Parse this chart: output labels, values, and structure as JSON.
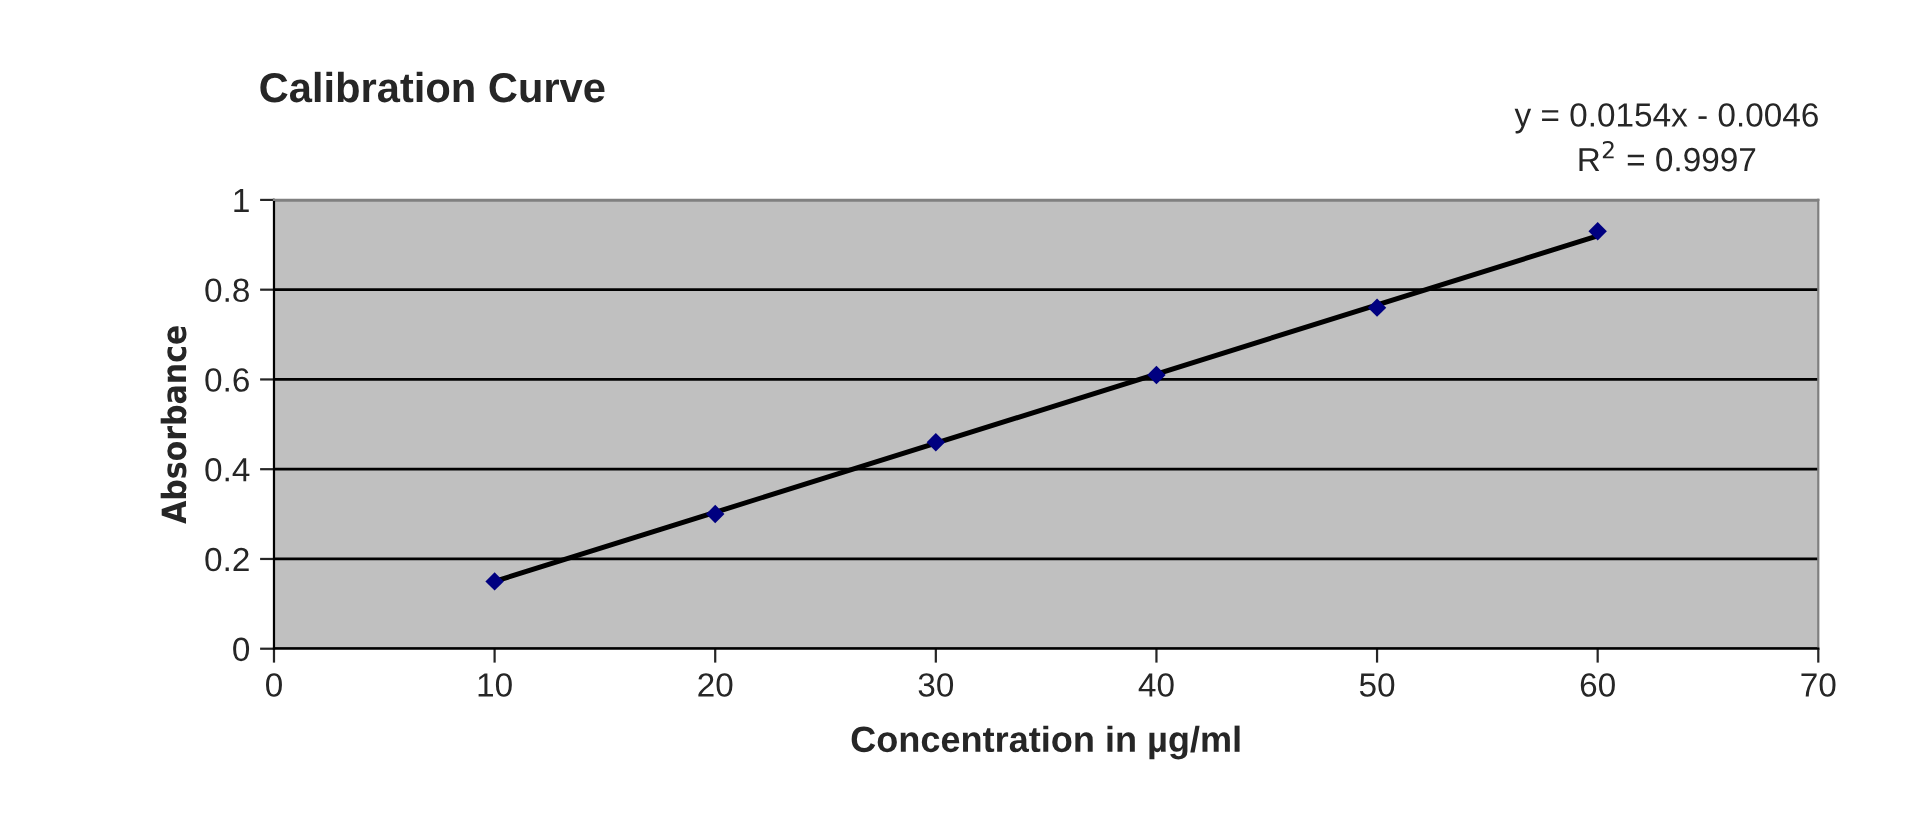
{
  "chart_data": {
    "type": "scatter",
    "title": "Calibration Curve",
    "xlabel": "Concentration in µg/ml",
    "ylabel": "Absorbance",
    "xlim": [
      0,
      70
    ],
    "xticks": [
      0,
      10,
      20,
      30,
      40,
      50,
      60,
      70
    ],
    "ylim": [
      0,
      1
    ],
    "yticks": [
      0,
      0.2,
      0.4,
      0.6,
      0.8,
      1
    ],
    "grid": "y",
    "legend": false,
    "series": [
      {
        "marker": "diamond",
        "color": "#000080",
        "x": [
          10,
          20,
          30,
          40,
          50,
          60
        ],
        "values": [
          0.15,
          0.3,
          0.46,
          0.61,
          0.76,
          0.93
        ]
      },
      {
        "type": "line",
        "color": "#000000",
        "x": [
          10,
          60
        ],
        "values": [
          0.15,
          0.92
        ]
      }
    ],
    "annotations": [
      "y = 0.0154x - 0.0046",
      "R$^{2}$ = 0.9997"
    ]
  }
}
